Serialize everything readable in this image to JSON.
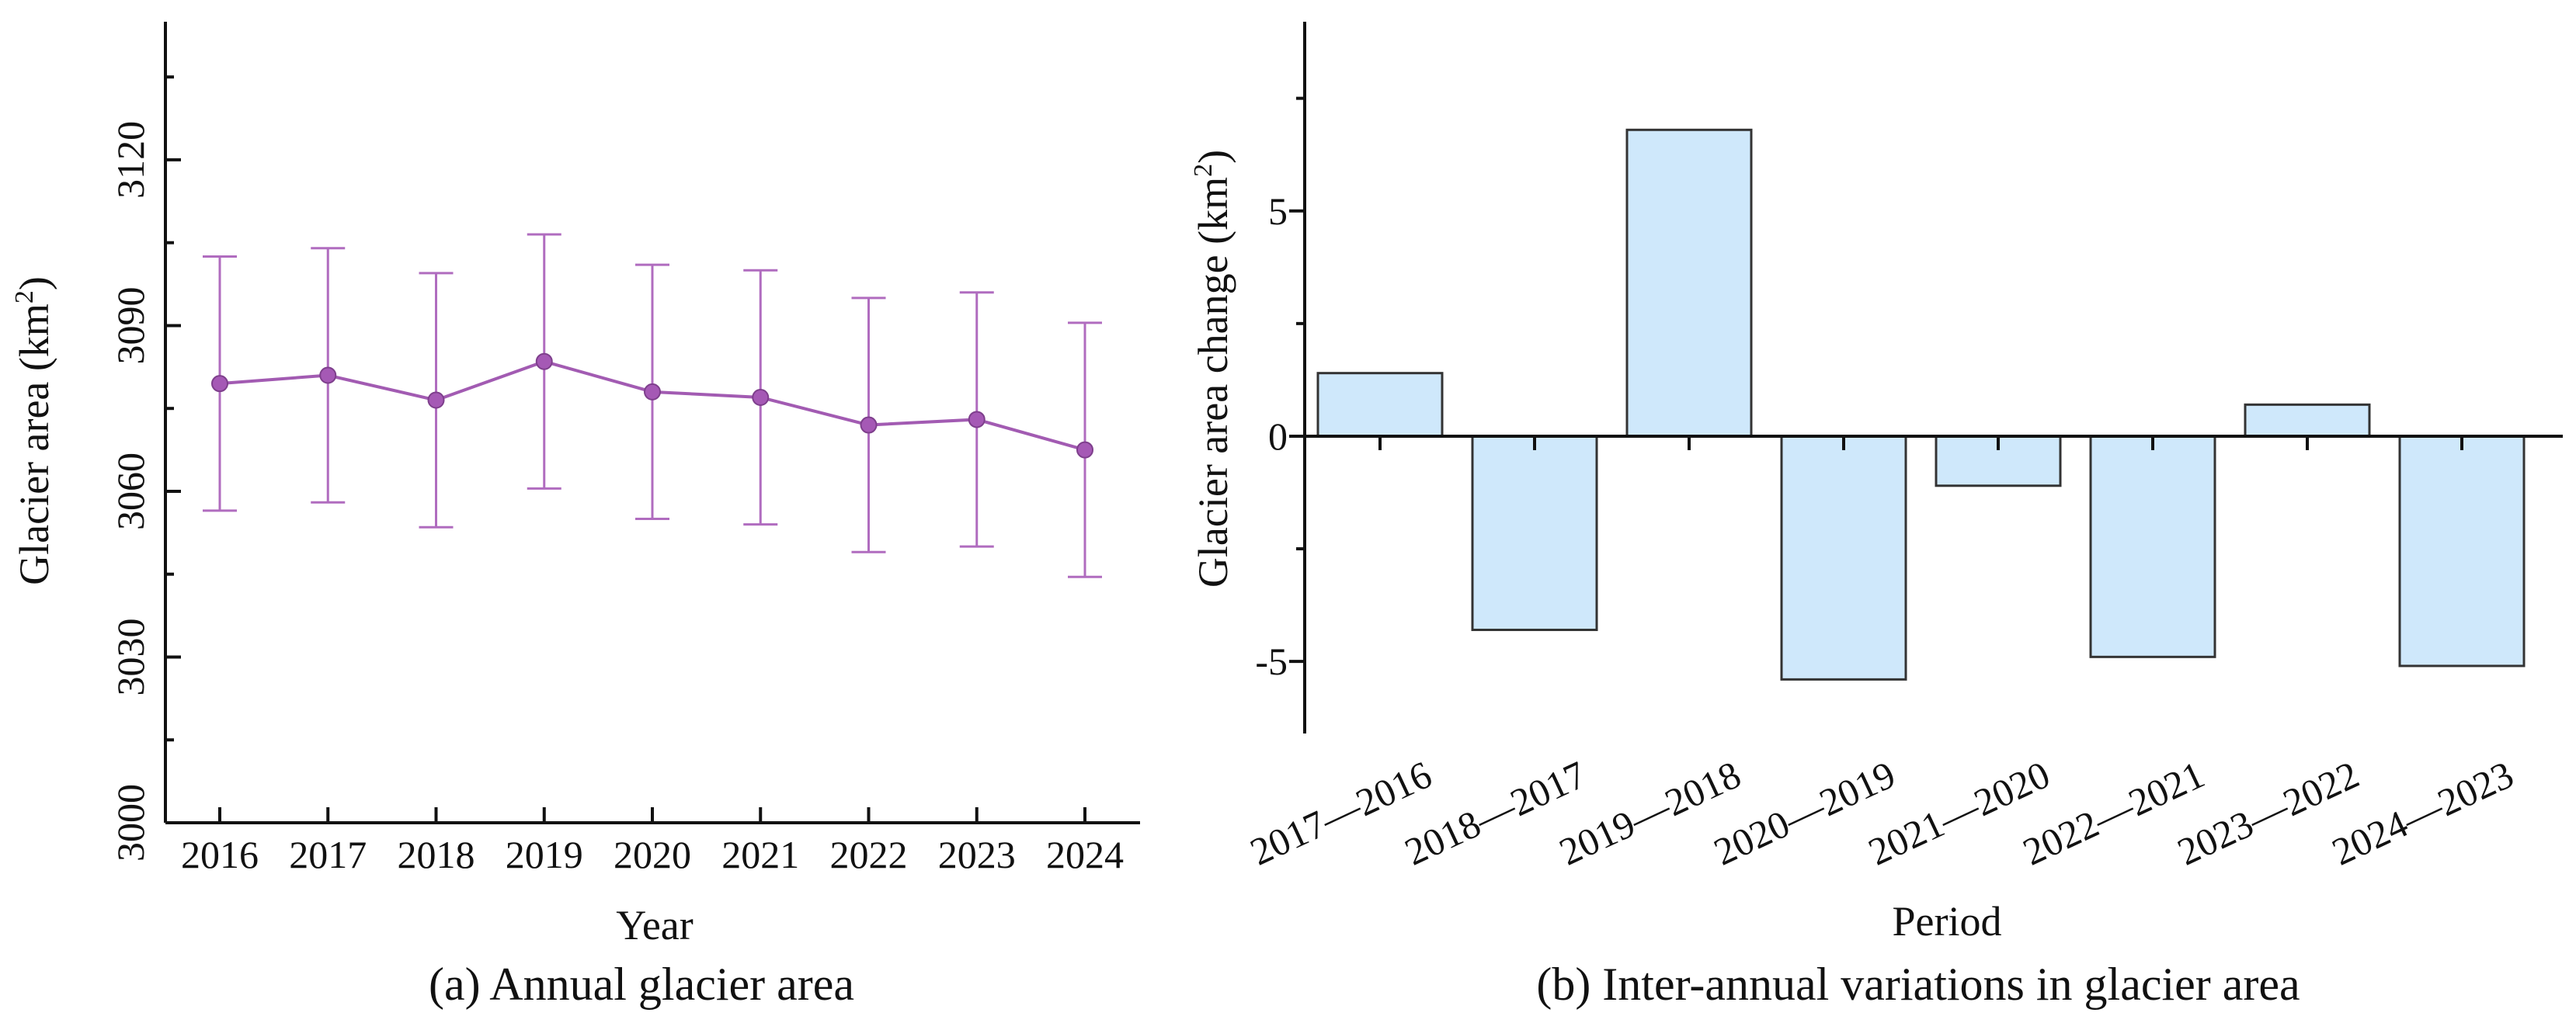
{
  "chart_data": [
    {
      "type": "line",
      "caption": "(a) Annual glacier area",
      "xlabel": "Year",
      "ylabel_main": "Glacier area (km",
      "ylabel_sup": "2",
      "ylabel_end": ")",
      "ylim": [
        3000,
        3145
      ],
      "yticks": [
        3000,
        3030,
        3060,
        3090,
        3120
      ],
      "categories": [
        "2016",
        "2017",
        "2018",
        "2019",
        "2020",
        "2021",
        "2022",
        "2023",
        "2024"
      ],
      "series": [
        {
          "name": "Glacier area",
          "values": [
            3079.5,
            3081.0,
            3076.5,
            3083.5,
            3078.0,
            3077.0,
            3072.0,
            3073.0,
            3067.5
          ],
          "err_upper": [
            3102.5,
            3104.0,
            3099.5,
            3106.5,
            3101.0,
            3100.0,
            3095.0,
            3096.0,
            3090.5
          ],
          "err_lower": [
            3056.5,
            3058.0,
            3053.5,
            3060.5,
            3055.0,
            3054.0,
            3049.0,
            3050.0,
            3044.5
          ]
        }
      ],
      "color": "#a25bb2"
    },
    {
      "type": "bar",
      "caption": "(b) Inter-annual variations in glacier area",
      "xlabel": "Period",
      "ylabel_main": "Glacier area change (km",
      "ylabel_sup": "2",
      "ylabel_end": ")",
      "ylim": [
        -6.6,
        9.2
      ],
      "yticks": [
        -5,
        0,
        5
      ],
      "ytick_labels": [
        "-5",
        "0",
        "5"
      ],
      "categories": [
        "2017—2016",
        "2018—2017",
        "2019—2018",
        "2020—2019",
        "2021—2020",
        "2022—2021",
        "2023—2022",
        "2024—2023"
      ],
      "values": [
        1.4,
        -4.3,
        6.8,
        -5.4,
        -1.1,
        -4.9,
        0.7,
        -5.1
      ],
      "color": "#cfe8fb"
    }
  ]
}
